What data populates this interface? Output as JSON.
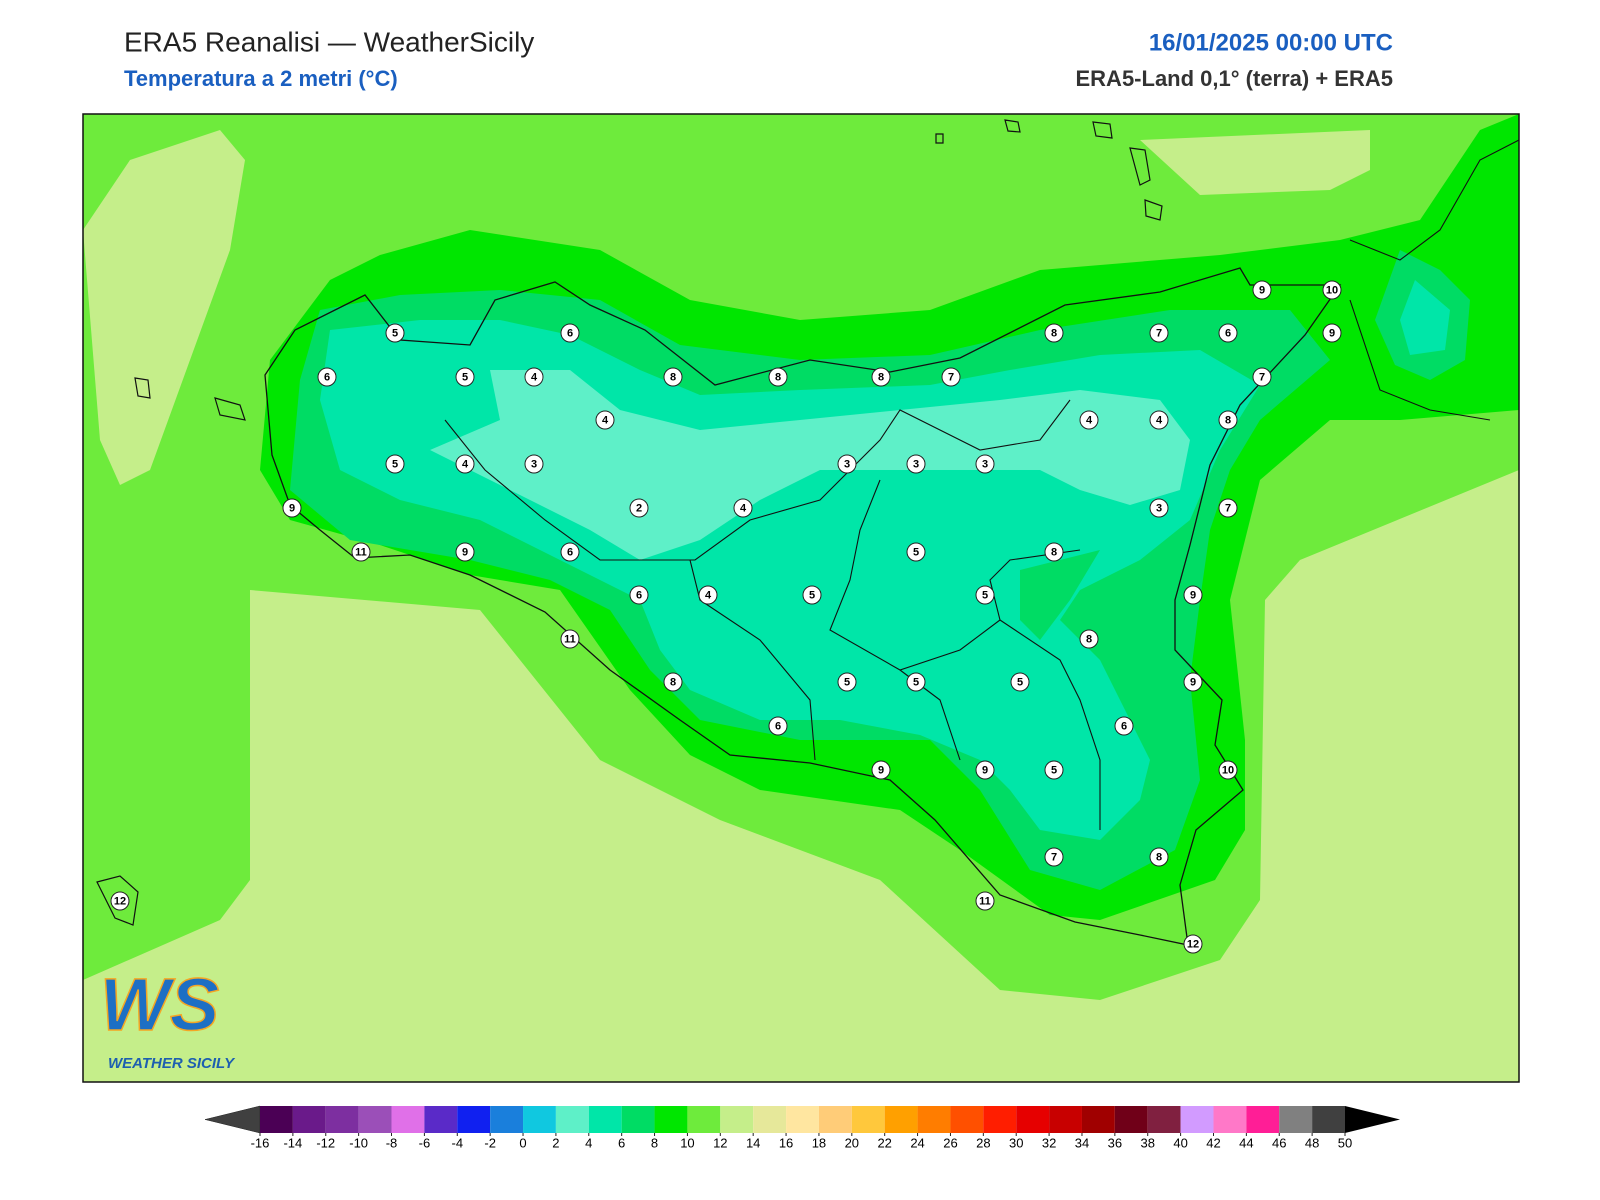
{
  "header": {
    "title": "ERA5 Reanalisi — WeatherSicily",
    "subtitle": "Temperatura a 2 metri (°C)",
    "datetime": "16/01/2025 00:00 UTC",
    "source": "ERA5-Land 0,1° (terra) + ERA5"
  },
  "stations": [
    5,
    6,
    6,
    5,
    4,
    8,
    8,
    8,
    7,
    8,
    7,
    6,
    9,
    10,
    9,
    7,
    4,
    4,
    4,
    8,
    5,
    4,
    3,
    3,
    3,
    3,
    9,
    2,
    4,
    3,
    7,
    11,
    9,
    6,
    5,
    8,
    6,
    4,
    5,
    5,
    9,
    11,
    8,
    8,
    5,
    5,
    5,
    9,
    6,
    6,
    9,
    9,
    5,
    10,
    7,
    8,
    12,
    11,
    12
  ],
  "colorbar": {
    "ticks": [
      -16,
      -14,
      -12,
      -10,
      -8,
      -6,
      -4,
      -2,
      0,
      2,
      4,
      6,
      8,
      10,
      12,
      14,
      16,
      18,
      20,
      22,
      24,
      26,
      28,
      30,
      32,
      34,
      36,
      38,
      40,
      42,
      44,
      46,
      48,
      50
    ],
    "colors": [
      "#4b0055",
      "#6a1a8a",
      "#7d2fa0",
      "#9b4fb8",
      "#e070e8",
      "#5a2ac8",
      "#1020f0",
      "#1a7fdc",
      "#10c8e0",
      "#5ef0c8",
      "#00e6a8",
      "#00dc64",
      "#00e600",
      "#6eeb3c",
      "#c5ee8a",
      "#e6e89a",
      "#ffe6a0",
      "#ffcc78",
      "#ffc83c",
      "#ffa000",
      "#ff7d00",
      "#ff5000",
      "#ff1e00",
      "#e60000",
      "#c80000",
      "#a00000",
      "#700018",
      "#802040",
      "#d29bff",
      "#ff78c8",
      "#ff1e96",
      "#808080",
      "#404040"
    ],
    "under_color": "#404040",
    "over_color": "#000000"
  },
  "logo": {
    "mark": "WS",
    "text": "WEATHER SICILY"
  }
}
